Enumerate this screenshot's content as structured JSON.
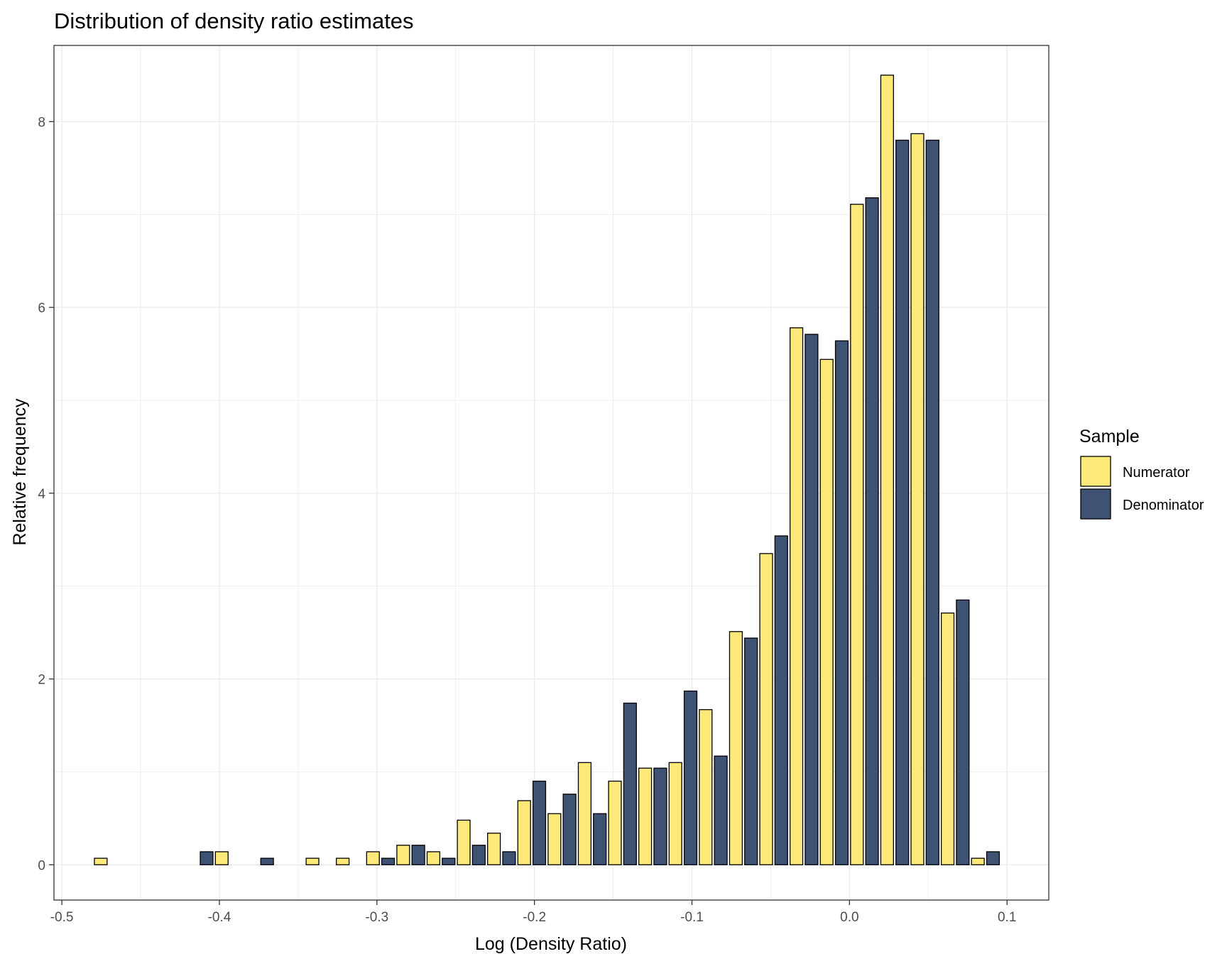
{
  "chart_data": {
    "type": "bar",
    "title": "Distribution of density ratio estimates",
    "xlabel": "Log (Density Ratio)",
    "ylabel": "Relative frequency",
    "xlim": [
      -0.505,
      0.1265
    ],
    "ylim": [
      -0.38,
      8.82
    ],
    "bin_width": 0.0192,
    "x_ticks": [
      -0.5,
      -0.4,
      -0.3,
      -0.2,
      -0.1,
      0.0,
      0.1
    ],
    "x_tick_labels": [
      "-0.5",
      "-0.4",
      "-0.3",
      "-0.2",
      "-0.1",
      "0.0",
      "0.1"
    ],
    "y_ticks": [
      0,
      2,
      4,
      6,
      8
    ],
    "y_tick_labels": [
      "0",
      "2",
      "4",
      "6",
      "8"
    ],
    "grid": true,
    "legend": {
      "title": "Sample",
      "position": "right"
    },
    "colors": {
      "Numerator": "#fde97a",
      "Denominator": "#3e5273",
      "outline": "#000000",
      "grid": "#ebebeb"
    },
    "bin_centers": [
      -0.4705,
      -0.4513,
      -0.4321,
      -0.4129,
      -0.3937,
      -0.3745,
      -0.3553,
      -0.3361,
      -0.3169,
      -0.2977,
      -0.2785,
      -0.2593,
      -0.2401,
      -0.2209,
      -0.2017,
      -0.1825,
      -0.1633,
      -0.1441,
      -0.1249,
      -0.1057,
      -0.0865,
      -0.0673,
      -0.0481,
      -0.0289,
      -0.0097,
      0.0095,
      0.0287,
      0.0479,
      0.0671,
      0.0863
    ],
    "series": [
      {
        "name": "Numerator",
        "values": [
          0.07,
          0,
          0,
          0,
          0.14,
          0,
          0,
          0.07,
          0.07,
          0.14,
          0.21,
          0.14,
          0.48,
          0.34,
          0.69,
          0.55,
          1.1,
          0.9,
          1.04,
          1.1,
          1.67,
          2.51,
          3.35,
          5.78,
          5.44,
          7.11,
          8.5,
          7.87,
          2.71,
          0.07
        ]
      },
      {
        "name": "Denominator",
        "values": [
          0,
          0,
          0,
          0.14,
          0,
          0.07,
          0,
          0,
          0,
          0.07,
          0.21,
          0.07,
          0.21,
          0.14,
          0.9,
          0.76,
          0.55,
          1.74,
          1.04,
          1.87,
          1.17,
          2.44,
          3.54,
          5.71,
          5.64,
          7.18,
          7.8,
          7.8,
          2.85,
          0.14
        ]
      }
    ]
  }
}
